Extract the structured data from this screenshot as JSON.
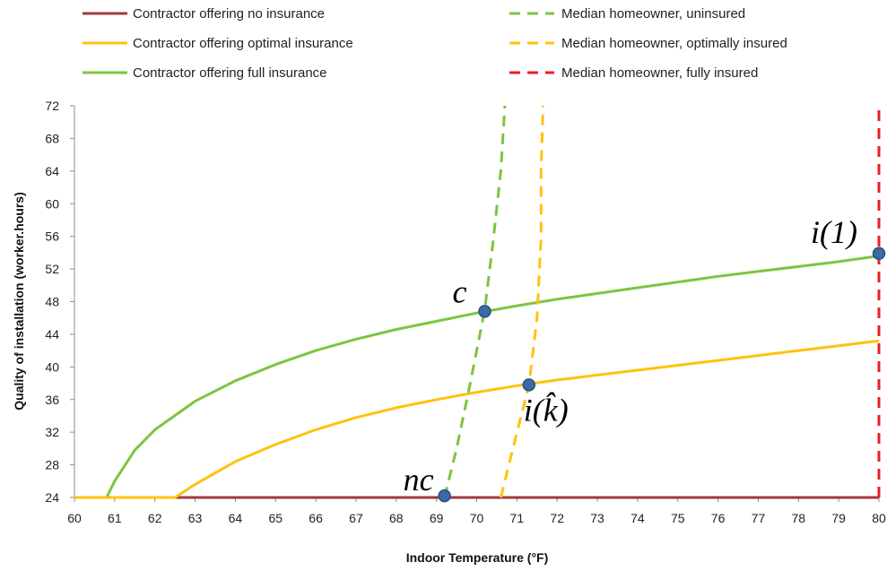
{
  "chart_data": {
    "type": "line",
    "title": "",
    "xlabel": "Indoor Temperature (°F)",
    "ylabel": "Quality of installation (worker.hours)",
    "xlim": [
      60,
      80
    ],
    "ylim": [
      24,
      72
    ],
    "x_ticks": [
      "60",
      "61",
      "62",
      "63",
      "64",
      "65",
      "66",
      "67",
      "68",
      "69",
      "70",
      "71",
      "72",
      "73",
      "74",
      "75",
      "76",
      "77",
      "78",
      "79",
      "80"
    ],
    "y_ticks": [
      "24",
      "28",
      "32",
      "36",
      "40",
      "44",
      "48",
      "52",
      "56",
      "60",
      "64",
      "68",
      "72"
    ],
    "grid": false,
    "legend_position": "top",
    "series": [
      {
        "name": "Contractor offering no insurance",
        "color": "#a0393a",
        "dash": "solid",
        "points": [
          [
            60,
            24
          ],
          [
            80,
            24
          ]
        ]
      },
      {
        "name": "Contractor offering optimal insurance",
        "color": "#ffc20e",
        "dash": "solid",
        "points": [
          [
            60,
            24
          ],
          [
            62.5,
            24
          ],
          [
            63,
            25.6
          ],
          [
            64,
            28.4
          ],
          [
            65,
            30.5
          ],
          [
            66,
            32.3
          ],
          [
            67,
            33.8
          ],
          [
            68,
            35
          ],
          [
            69,
            36
          ],
          [
            70,
            36.9
          ],
          [
            71,
            37.7
          ],
          [
            72,
            38.4
          ],
          [
            73,
            39
          ],
          [
            74,
            39.6
          ],
          [
            75,
            40.2
          ],
          [
            76,
            40.8
          ],
          [
            77,
            41.4
          ],
          [
            78,
            42
          ],
          [
            79,
            42.6
          ],
          [
            80,
            43.2
          ]
        ]
      },
      {
        "name": "Contractor offering full insurance",
        "color": "#7cc540",
        "dash": "solid",
        "points": [
          [
            60,
            24
          ],
          [
            60.8,
            24
          ],
          [
            61,
            26
          ],
          [
            61.5,
            29.8
          ],
          [
            62,
            32.3
          ],
          [
            63,
            35.8
          ],
          [
            64,
            38.3
          ],
          [
            65,
            40.3
          ],
          [
            66,
            42
          ],
          [
            67,
            43.4
          ],
          [
            68,
            44.6
          ],
          [
            69,
            45.6
          ],
          [
            70,
            46.6
          ],
          [
            71,
            47.5
          ],
          [
            72,
            48.3
          ],
          [
            73,
            49
          ],
          [
            74,
            49.7
          ],
          [
            75,
            50.4
          ],
          [
            76,
            51.1
          ],
          [
            77,
            51.7
          ],
          [
            78,
            52.3
          ],
          [
            79,
            52.9
          ],
          [
            80,
            53.6
          ]
        ]
      },
      {
        "name": "Median homeowner, uninsured",
        "color": "#7cc540",
        "dash": "dashed",
        "points": [
          [
            69.2,
            24
          ],
          [
            69.5,
            30
          ],
          [
            69.8,
            37
          ],
          [
            70.2,
            47
          ],
          [
            70.4,
            55
          ],
          [
            70.6,
            64
          ],
          [
            70.7,
            72
          ]
        ]
      },
      {
        "name": "Median homeowner, optimally insured",
        "color": "#ffc20e",
        "dash": "dashed",
        "points": [
          [
            70.6,
            24
          ],
          [
            70.9,
            30
          ],
          [
            71.3,
            37.8
          ],
          [
            71.5,
            46
          ],
          [
            71.6,
            56
          ],
          [
            71.6,
            64
          ],
          [
            71.65,
            72
          ]
        ]
      },
      {
        "name": "Median homeowner, fully insured",
        "color": "#ee1c24",
        "dash": "dashed",
        "points": [
          [
            80,
            24
          ],
          [
            80,
            72
          ]
        ]
      }
    ],
    "markers": [
      {
        "label": "nc",
        "x": 69.2,
        "y": 24.2
      },
      {
        "label": "c",
        "x": 70.2,
        "y": 46.8
      },
      {
        "label": "i(k̂)",
        "x": 71.3,
        "y": 37.8
      },
      {
        "label": "i(1)",
        "x": 80,
        "y": 53.9
      }
    ],
    "marker_color": "#3b6aa5"
  }
}
